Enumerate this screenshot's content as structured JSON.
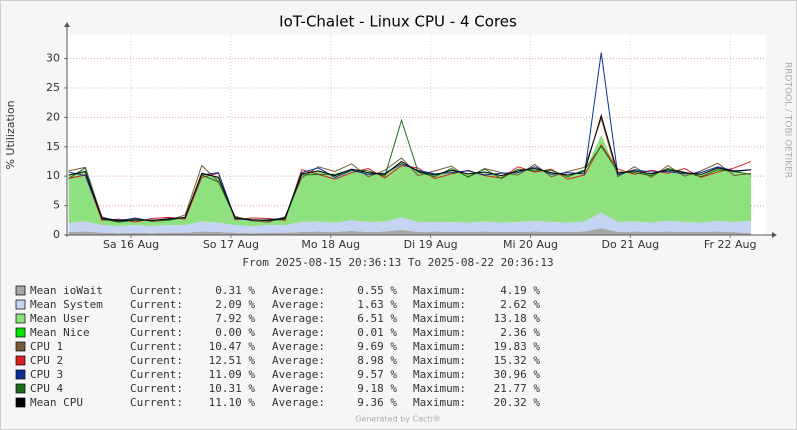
{
  "chart_data": {
    "type": "line",
    "title": "IoT-Chalet - Linux CPU - 4 Cores",
    "subtitle": "From 2025-08-15 20:36:13 To 2025-08-22 20:36:13",
    "y_label": "% Utilization",
    "watermark": "RRDTOOL / TOBI OETIKER",
    "footer": "Generated by Cacti®",
    "stat_labels": [
      "Current:",
      "Average:",
      "Maximum:"
    ],
    "xlim": [
      "2025-08-15 20:36:13",
      "2025-08-22 20:36:13"
    ],
    "xticks": [
      {
        "value": "2025-08-16 12:00",
        "label": "Sa 16 Aug"
      },
      {
        "value": "2025-08-17 12:00",
        "label": "So 17 Aug"
      },
      {
        "value": "2025-08-18 12:00",
        "label": "Mo 18 Aug"
      },
      {
        "value": "2025-08-19 12:00",
        "label": "Di 19 Aug"
      },
      {
        "value": "2025-08-20 12:00",
        "label": "Mi 20 Aug"
      },
      {
        "value": "2025-08-21 12:00",
        "label": "Do 21 Aug"
      },
      {
        "value": "2025-08-22 12:00",
        "label": "Fr 22 Aug"
      }
    ],
    "ylim": [
      0,
      34
    ],
    "yticks": [
      0,
      5,
      10,
      15,
      20,
      25,
      30
    ],
    "grid": true,
    "x": [
      "2025-08-15 21:00",
      "2025-08-16 01:00",
      "2025-08-16 05:00",
      "2025-08-16 09:00",
      "2025-08-16 13:00",
      "2025-08-16 17:00",
      "2025-08-16 21:00",
      "2025-08-17 01:00",
      "2025-08-17 05:00",
      "2025-08-17 09:00",
      "2025-08-17 13:00",
      "2025-08-17 17:00",
      "2025-08-17 21:00",
      "2025-08-18 01:00",
      "2025-08-18 05:00",
      "2025-08-18 09:00",
      "2025-08-18 13:00",
      "2025-08-18 17:00",
      "2025-08-18 21:00",
      "2025-08-19 01:00",
      "2025-08-19 05:00",
      "2025-08-19 09:00",
      "2025-08-19 13:00",
      "2025-08-19 17:00",
      "2025-08-19 21:00",
      "2025-08-20 01:00",
      "2025-08-20 05:00",
      "2025-08-20 09:00",
      "2025-08-20 13:00",
      "2025-08-20 17:00",
      "2025-08-20 21:00",
      "2025-08-21 01:00",
      "2025-08-21 05:00",
      "2025-08-21 09:00",
      "2025-08-21 13:00",
      "2025-08-21 17:00",
      "2025-08-21 21:00",
      "2025-08-22 01:00",
      "2025-08-22 05:00",
      "2025-08-22 09:00",
      "2025-08-22 13:00",
      "2025-08-22 17:00"
    ],
    "series": [
      {
        "name": "Mean ioWait",
        "color": "#a8a8a8",
        "style": "stack",
        "current": "0.31 %",
        "average": "0.55 %",
        "maximum": "4.19 %",
        "values": [
          0.5,
          0.6,
          0.4,
          0.3,
          0.4,
          0.3,
          0.4,
          0.4,
          0.6,
          0.5,
          0.4,
          0.3,
          0.4,
          0.4,
          0.5,
          0.6,
          0.5,
          0.7,
          0.5,
          0.6,
          0.9,
          0.5,
          0.6,
          0.5,
          0.5,
          0.6,
          0.5,
          0.5,
          0.6,
          0.5,
          0.5,
          0.6,
          1.2,
          0.5,
          0.6,
          0.5,
          0.6,
          0.5,
          0.5,
          0.6,
          0.5,
          0.3
        ]
      },
      {
        "name": "Mean System",
        "color": "#c6d4f4",
        "style": "stack",
        "current": "2.09 %",
        "average": "1.63 %",
        "maximum": "2.62 %",
        "values": [
          1.6,
          1.7,
          1.3,
          1.2,
          1.3,
          1.2,
          1.3,
          1.3,
          1.7,
          1.6,
          1.3,
          1.2,
          1.3,
          1.3,
          1.7,
          1.7,
          1.6,
          1.8,
          1.7,
          1.7,
          2.1,
          1.7,
          1.6,
          1.7,
          1.6,
          1.7,
          1.6,
          1.7,
          1.8,
          1.7,
          1.6,
          1.7,
          2.6,
          1.7,
          1.7,
          1.6,
          1.8,
          1.7,
          1.6,
          1.8,
          1.7,
          2.1
        ]
      },
      {
        "name": "Mean User",
        "color": "#8fe07e",
        "style": "stack",
        "current": "7.92 %",
        "average": "6.51 %",
        "maximum": "13.18 %",
        "values": [
          8.1,
          8.5,
          1.1,
          0.9,
          0.9,
          1.0,
          1.0,
          1.3,
          8.2,
          7.7,
          1.2,
          1.1,
          0.8,
          1.1,
          8.2,
          8.6,
          8.0,
          8.7,
          8.4,
          8.0,
          9.5,
          8.6,
          8.0,
          8.8,
          8.3,
          8.4,
          8.0,
          8.7,
          8.9,
          8.4,
          8.1,
          8.5,
          13.2,
          8.3,
          8.6,
          8.3,
          8.7,
          8.4,
          8.2,
          9.0,
          8.6,
          7.9
        ]
      },
      {
        "name": "Mean Nice",
        "color": "#00e800",
        "style": "stack",
        "current": "0.00 %",
        "average": "0.01 %",
        "maximum": "2.36 %",
        "values": [
          0,
          0,
          0,
          0,
          0,
          0,
          0,
          0,
          0,
          0,
          0,
          0,
          0,
          0,
          0,
          0,
          0,
          0,
          0,
          0,
          0,
          0,
          0,
          0,
          0,
          0,
          0,
          0,
          0,
          0,
          0,
          0,
          0,
          0,
          0,
          0,
          0,
          0,
          0,
          0,
          0,
          0
        ]
      },
      {
        "name": "CPU 1",
        "color": "#7a5c38",
        "style": "line",
        "current": "10.47 %",
        "average": "9.69 %",
        "maximum": "19.83 %",
        "values": [
          10.9,
          11.5,
          3.1,
          2.2,
          2.9,
          2.3,
          2.5,
          3.4,
          11.8,
          9.1,
          3.2,
          2.4,
          2.2,
          3.1,
          9.7,
          11.6,
          10.8,
          12.1,
          9.9,
          11.0,
          13.1,
          10.1,
          10.9,
          11.7,
          9.8,
          11.3,
          10.6,
          10.2,
          12.0,
          9.9,
          10.8,
          11.5,
          19.8,
          9.9,
          11.6,
          9.8,
          11.8,
          10.0,
          10.9,
          12.2,
          10.1,
          10.5
        ]
      },
      {
        "name": "CPU 2",
        "color": "#d82020",
        "style": "line",
        "current": "12.51 %",
        "average": "8.98 %",
        "maximum": "15.32 %",
        "values": [
          9.6,
          10.2,
          2.5,
          2.7,
          2.2,
          2.8,
          3.0,
          2.7,
          9.8,
          10.5,
          2.6,
          2.9,
          2.8,
          2.5,
          11.1,
          10.3,
          9.5,
          10.6,
          11.3,
          9.7,
          11.8,
          11.4,
          9.6,
          10.4,
          11.0,
          10.1,
          9.7,
          11.6,
          10.7,
          11.2,
          9.5,
          10.2,
          15.3,
          11.2,
          10.3,
          11.0,
          10.5,
          11.3,
          9.8,
          10.7,
          11.4,
          12.5
        ]
      },
      {
        "name": "CPU 3",
        "color": "#0a3296",
        "style": "line",
        "current": "11.09 %",
        "average": "9.57 %",
        "maximum": "30.96 %",
        "values": [
          10.7,
          10.1,
          2.9,
          2.5,
          2.8,
          2.4,
          2.8,
          2.9,
          10.2,
          10.6,
          2.8,
          2.5,
          2.6,
          2.9,
          10.6,
          11.4,
          9.8,
          11.0,
          10.3,
          10.5,
          12.1,
          11.0,
          10.4,
          10.6,
          10.9,
          10.2,
          10.5,
          10.6,
          11.6,
          10.3,
          10.6,
          10.4,
          31.0,
          10.2,
          11.1,
          10.7,
          10.8,
          10.4,
          10.6,
          11.6,
          10.9,
          11.1
        ]
      },
      {
        "name": "CPU 4",
        "color": "#1e6e1e",
        "style": "line",
        "current": "10.31 %",
        "average": "9.18 %",
        "maximum": "21.77 %",
        "values": [
          9.6,
          11.4,
          2.7,
          2.2,
          2.5,
          2.5,
          2.5,
          3.0,
          10.2,
          9.0,
          3.0,
          2.6,
          2.4,
          2.7,
          10.2,
          10.3,
          10.3,
          11.1,
          10.9,
          10.0,
          19.5,
          10.7,
          9.9,
          11.3,
          9.9,
          11.2,
          9.6,
          11.2,
          10.9,
          11.0,
          9.9,
          11.1,
          15.1,
          10.7,
          10.6,
          10.1,
          11.3,
          10.7,
          9.9,
          11.1,
          10.8,
          10.3
        ]
      },
      {
        "name": "Mean CPU",
        "color": "#000000",
        "style": "line",
        "current": "11.10 %",
        "average": "9.36 %",
        "maximum": "20.32 %",
        "values": [
          10.2,
          10.8,
          2.8,
          2.4,
          2.6,
          2.5,
          2.7,
          3.0,
          10.5,
          9.8,
          2.9,
          2.6,
          2.5,
          2.8,
          10.4,
          10.9,
          10.1,
          11.2,
          10.6,
          10.3,
          12.5,
          10.8,
          10.2,
          11.0,
          10.4,
          10.7,
          10.1,
          10.9,
          11.3,
          10.6,
          10.2,
          10.8,
          20.3,
          10.5,
          10.9,
          10.4,
          11.1,
          10.6,
          10.3,
          11.4,
          10.8,
          11.1
        ]
      }
    ]
  }
}
